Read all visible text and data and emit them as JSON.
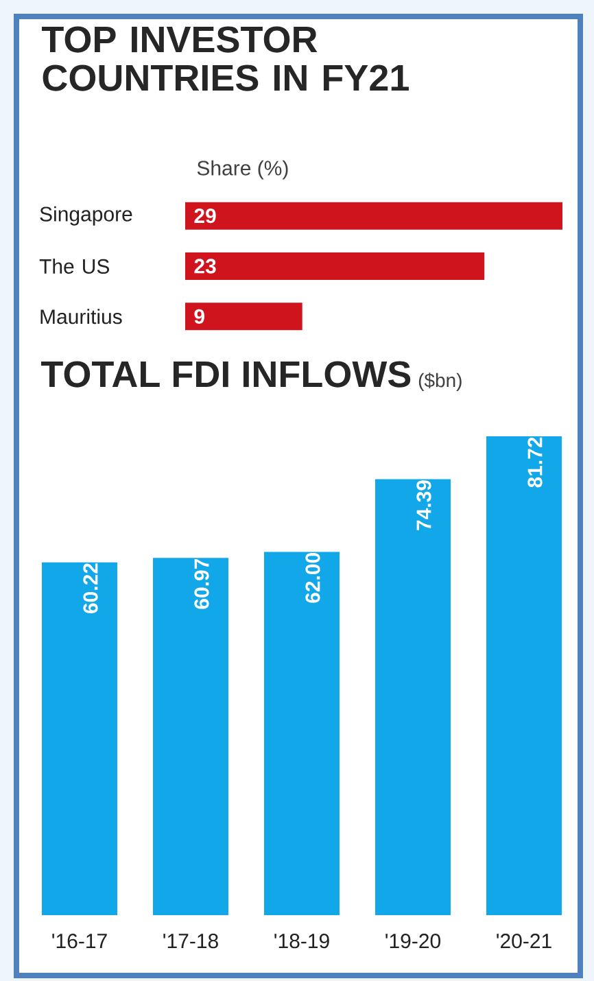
{
  "chart_data": [
    {
      "type": "bar",
      "orientation": "horizontal",
      "title": "TOP INVESTOR COUNTRIES IN FY21",
      "subtitle": "Share (%)",
      "categories": [
        "Singapore",
        "The US",
        "Mauritius"
      ],
      "values": [
        29,
        23,
        9
      ],
      "color": "#d0141e",
      "data_labels": true
    },
    {
      "type": "bar",
      "title": "TOTAL FDI INFLOWS",
      "subtitle": "($bn)",
      "categories": [
        "'16-17",
        "'17-18",
        "'18-19",
        "'19-20",
        "'20-21"
      ],
      "values": [
        60.22,
        60.97,
        62.0,
        74.39,
        81.72
      ],
      "value_labels": [
        "60.22",
        "60.97",
        "62.00",
        "74.39",
        "81.72"
      ],
      "color": "#12a7e8"
    }
  ]
}
